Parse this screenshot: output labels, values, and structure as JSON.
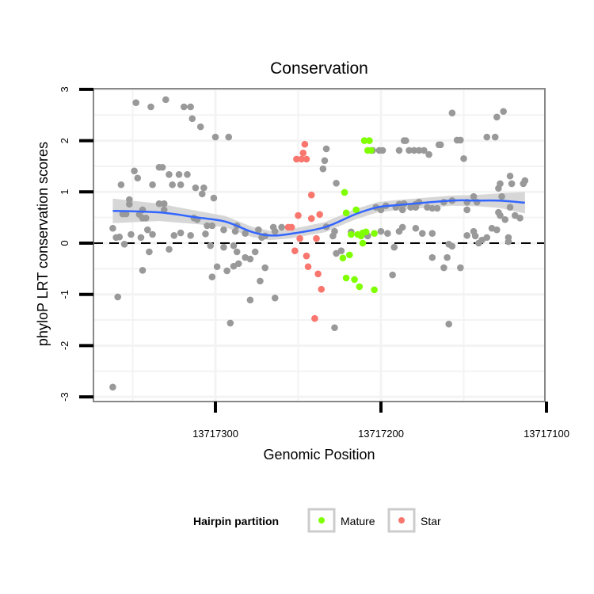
{
  "chart_data": {
    "type": "scatter",
    "title": "Conservation",
    "xlabel": "Genomic Position",
    "ylabel": "phyloP LRT conservation scores",
    "xlim": [
      13717374,
      13717101
    ],
    "x_reversed": true,
    "ylim": [
      -3.05,
      3.05
    ],
    "x_ticks": [
      13717300,
      13717200,
      13717100
    ],
    "x_tick_labels": [
      "13717300",
      "13717200",
      "13717100"
    ],
    "y_ticks": [
      3,
      2,
      1,
      0,
      -1,
      -2,
      -3
    ],
    "y_tick_labels": [
      "3",
      "2",
      "1",
      "0",
      "-1",
      "-2",
      "-3"
    ],
    "reference_line": {
      "y": 0,
      "style": "dashed"
    },
    "grid": true,
    "legend": {
      "title": "Hairpin partition",
      "placement": "bottom",
      "entries": [
        {
          "label": "Mature",
          "color": "#7FFF00"
        },
        {
          "label": "Star",
          "color": "#F8766D"
        }
      ]
    },
    "colors": {
      "other": "#999999",
      "smooth": "#3366FF",
      "band": "#D3D3D3"
    },
    "series": [
      {
        "name": "Other",
        "points": [
          [
            13717362,
            -2.81
          ],
          [
            13717359,
            -1.05
          ],
          [
            13717348,
            2.74
          ],
          [
            13717339,
            2.66
          ],
          [
            13717330,
            2.8
          ],
          [
            13717319,
            2.66
          ],
          [
            13717315,
            2.66
          ],
          [
            13717314,
            2.43
          ],
          [
            13717309,
            2.27
          ],
          [
            13717300,
            2.07
          ],
          [
            13717292,
            2.07
          ],
          [
            13717349,
            1.41
          ],
          [
            13717347,
            1.27
          ],
          [
            13717334,
            1.48
          ],
          [
            13717332,
            1.48
          ],
          [
            13717328,
            1.34
          ],
          [
            13717322,
            1.34
          ],
          [
            13717317,
            1.34
          ],
          [
            13717338,
            1.14
          ],
          [
            13717326,
            1.14
          ],
          [
            13717321,
            1.14
          ],
          [
            13717312,
            1.08
          ],
          [
            13717307,
            1.08
          ],
          [
            13717308,
            0.96
          ],
          [
            13717301,
            0.88
          ],
          [
            13717357,
            1.14
          ],
          [
            13717352,
            0.85
          ],
          [
            13717352,
            0.76
          ],
          [
            13717334,
            0.77
          ],
          [
            13717331,
            0.77
          ],
          [
            13717344,
            0.65
          ],
          [
            13717331,
            0.65
          ],
          [
            13717356,
            0.57
          ],
          [
            13717354,
            0.57
          ],
          [
            13717346,
            0.56
          ],
          [
            13717344,
            0.49
          ],
          [
            13717342,
            0.49
          ],
          [
            13717313,
            0.49
          ],
          [
            13717311,
            0.46
          ],
          [
            13717305,
            0.34
          ],
          [
            13717302,
            0.34
          ],
          [
            13717295,
            0.26
          ],
          [
            13717288,
            0.23
          ],
          [
            13717287,
            0.34
          ],
          [
            13717362,
            0.29
          ],
          [
            13717360,
            0.11
          ],
          [
            13717358,
            0.12
          ],
          [
            13717355,
            -0.02
          ],
          [
            13717351,
            0.17
          ],
          [
            13717345,
            0.11
          ],
          [
            13717341,
            0.26
          ],
          [
            13717338,
            0.17
          ],
          [
            13717325,
            0.15
          ],
          [
            13717321,
            0.2
          ],
          [
            13717315,
            0.15
          ],
          [
            13717306,
            0.18
          ],
          [
            13717303,
            -0.05
          ],
          [
            13717295,
            -0.08
          ],
          [
            13717289,
            -0.05
          ],
          [
            13717287,
            -0.17
          ],
          [
            13717340,
            -0.17
          ],
          [
            13717328,
            -0.12
          ],
          [
            13717344,
            -0.53
          ],
          [
            13717302,
            -0.66
          ],
          [
            13717293,
            -0.54
          ],
          [
            13717299,
            -0.46
          ],
          [
            13717289,
            -0.45
          ],
          [
            13717286,
            -0.4
          ],
          [
            13717282,
            -0.28
          ],
          [
            13717279,
            -0.31
          ],
          [
            13717276,
            -0.17
          ],
          [
            13717291,
            -1.56
          ],
          [
            13717279,
            -1.11
          ],
          [
            13717273,
            -0.74
          ],
          [
            13717264,
            -1.07
          ],
          [
            13717270,
            -0.48
          ],
          [
            13717282,
            0.19
          ],
          [
            13717274,
            0.26
          ],
          [
            13717265,
            0.31
          ],
          [
            13717260,
            0.31
          ],
          [
            13717264,
            0.23
          ],
          [
            13717272,
            0.11
          ],
          [
            13717270,
            0.14
          ],
          [
            13717233,
            1.84
          ],
          [
            13717234,
            1.61
          ],
          [
            13717235,
            1.45
          ],
          [
            13717227,
            1.17
          ],
          [
            13717233,
            0.32
          ],
          [
            13717229,
            0.14
          ],
          [
            13717228,
            0.23
          ],
          [
            13717227,
            -0.2
          ],
          [
            13717228,
            -1.65
          ],
          [
            13717224,
            -0.15
          ],
          [
            13717218,
            0.22
          ],
          [
            13717208,
            0.14
          ],
          [
            13717200,
            0.23
          ],
          [
            13717205,
            1.81
          ],
          [
            13717201,
            1.81
          ],
          [
            13717199,
            1.81
          ],
          [
            13717203,
            0.7
          ],
          [
            13717200,
            0.65
          ],
          [
            13717197,
            0.73
          ],
          [
            13717192,
            -0.08
          ],
          [
            13717193,
            -0.62
          ],
          [
            13717196,
            0.19
          ],
          [
            13717186,
            2.0
          ],
          [
            13717185,
            2.0
          ],
          [
            13717189,
            1.81
          ],
          [
            13717183,
            1.81
          ],
          [
            13717180,
            1.81
          ],
          [
            13717177,
            1.81
          ],
          [
            13717174,
            1.81
          ],
          [
            13717171,
            1.73
          ],
          [
            13717165,
            1.92
          ],
          [
            13717164,
            1.92
          ],
          [
            13717157,
            2.54
          ],
          [
            13717154,
            2.01
          ],
          [
            13717152,
            2.01
          ],
          [
            13717150,
            1.65
          ],
          [
            13717136,
            2.07
          ],
          [
            13717131,
            2.07
          ],
          [
            13717130,
            2.46
          ],
          [
            13717126,
            2.57
          ],
          [
            13717122,
            1.31
          ],
          [
            13717121,
            1.16
          ],
          [
            13717114,
            1.16
          ],
          [
            13717113,
            1.22
          ],
          [
            13717128,
            1.16
          ],
          [
            13717129,
            1.07
          ],
          [
            13717127,
            0.91
          ],
          [
            13717144,
            0.91
          ],
          [
            13717142,
            0.8
          ],
          [
            13717148,
            0.8
          ],
          [
            13717157,
            0.83
          ],
          [
            13717162,
            0.8
          ],
          [
            13717166,
            0.68
          ],
          [
            13717182,
            0.7
          ],
          [
            13717179,
            0.7
          ],
          [
            13717172,
            0.7
          ],
          [
            13717169,
            0.68
          ],
          [
            13717179,
            0.76
          ],
          [
            13717177,
            0.8
          ],
          [
            13717191,
            0.7
          ],
          [
            13717189,
            0.76
          ],
          [
            13717186,
            0.77
          ],
          [
            13717187,
            0.65
          ],
          [
            13717148,
            0.65
          ],
          [
            13717128,
            0.54
          ],
          [
            13717125,
            0.46
          ],
          [
            13717119,
            0.54
          ],
          [
            13717116,
            0.49
          ],
          [
            13717122,
            0.7
          ],
          [
            13717129,
            0.6
          ],
          [
            13717187,
            0.31
          ],
          [
            13717189,
            0.23
          ],
          [
            13717179,
            0.29
          ],
          [
            13717175,
            0.19
          ],
          [
            13717169,
            0.19
          ],
          [
            13717159,
            -0.02
          ],
          [
            13717157,
            -0.06
          ],
          [
            13717148,
            0.15
          ],
          [
            13717144,
            0.23
          ],
          [
            13717143,
            0.14
          ],
          [
            13717139,
            0.06
          ],
          [
            13717141,
            0.0
          ],
          [
            13717136,
            0.11
          ],
          [
            13717133,
            0.29
          ],
          [
            13717130,
            0.26
          ],
          [
            13717123,
            0.11
          ],
          [
            13717123,
            0.03
          ],
          [
            13717169,
            -0.28
          ],
          [
            13717160,
            -0.28
          ],
          [
            13717162,
            -0.48
          ],
          [
            13717152,
            -0.48
          ],
          [
            13717159,
            -1.58
          ]
        ]
      },
      {
        "name": "Star",
        "points": [
          [
            13717246,
            1.93
          ],
          [
            13717247,
            1.76
          ],
          [
            13717251,
            1.64
          ],
          [
            13717248,
            1.64
          ],
          [
            13717245,
            1.64
          ],
          [
            13717242,
            0.94
          ],
          [
            13717250,
            0.54
          ],
          [
            13717242,
            0.48
          ],
          [
            13717237,
            0.56
          ],
          [
            13717256,
            0.31
          ],
          [
            13717254,
            0.31
          ],
          [
            13717249,
            0.09
          ],
          [
            13717239,
            0.09
          ],
          [
            13717252,
            -0.15
          ],
          [
            13717245,
            -0.25
          ],
          [
            13717244,
            -0.46
          ],
          [
            13717238,
            -0.6
          ],
          [
            13717236,
            -0.9
          ],
          [
            13717240,
            -1.47
          ]
        ]
      },
      {
        "name": "Mature",
        "points": [
          [
            13717210,
            2.0
          ],
          [
            13717207,
            2.0
          ],
          [
            13717208,
            1.81
          ],
          [
            13717206,
            1.81
          ],
          [
            13717222,
            0.99
          ],
          [
            13717221,
            0.59
          ],
          [
            13717215,
            0.65
          ],
          [
            13717218,
            0.17
          ],
          [
            13717214,
            0.17
          ],
          [
            13717212,
            0.14
          ],
          [
            13717211,
            0.2
          ],
          [
            13717209,
            0.22
          ],
          [
            13717204,
            0.19
          ],
          [
            13717211,
            0.0
          ],
          [
            13717223,
            -0.29
          ],
          [
            13717219,
            -0.23
          ],
          [
            13717221,
            -0.68
          ],
          [
            13717216,
            -0.71
          ],
          [
            13717213,
            -0.85
          ],
          [
            13717204,
            -0.91
          ]
        ]
      }
    ],
    "smooth": {
      "x": [
        13717362,
        13717334,
        13717311,
        13717294,
        13717278,
        13717267,
        13717255,
        13717234,
        13717215,
        13717202,
        13717191,
        13717157,
        13717143,
        13717129,
        13717113
      ],
      "y": [
        0.63,
        0.6,
        0.5,
        0.42,
        0.22,
        0.15,
        0.18,
        0.31,
        0.57,
        0.7,
        0.74,
        0.83,
        0.83,
        0.83,
        0.79
      ],
      "se": [
        0.24,
        0.17,
        0.13,
        0.11,
        0.1,
        0.09,
        0.09,
        0.1,
        0.1,
        0.1,
        0.1,
        0.1,
        0.11,
        0.14,
        0.21
      ]
    }
  }
}
